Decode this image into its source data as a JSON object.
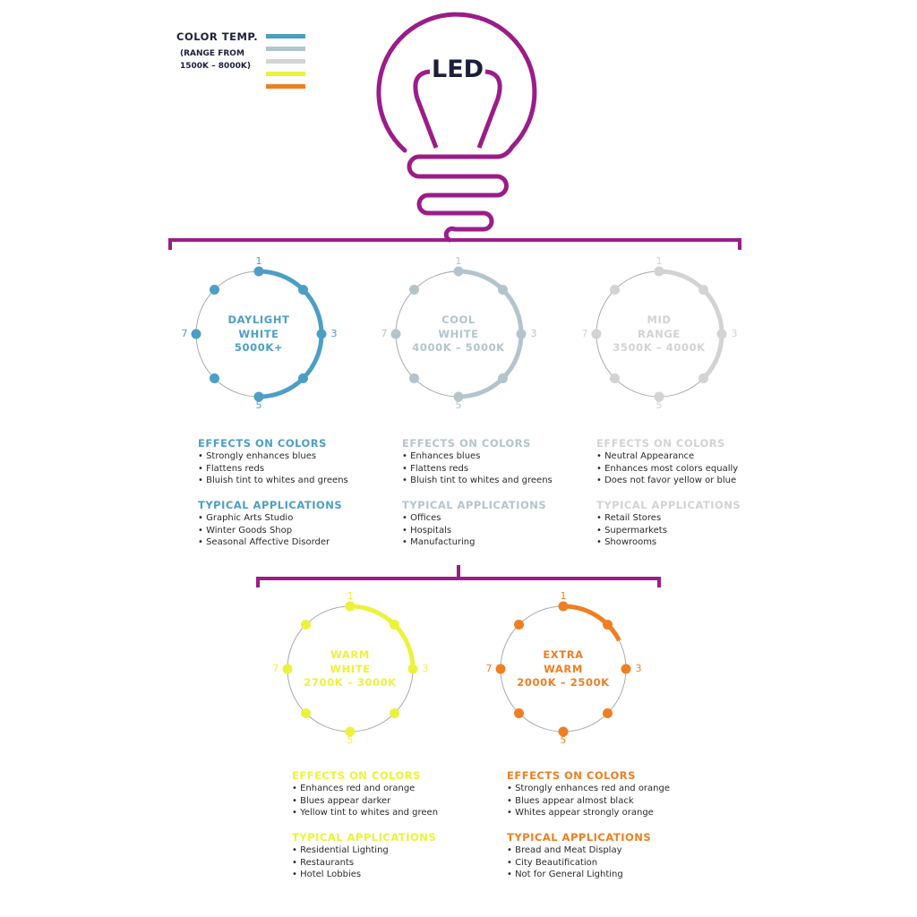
{
  "legend": {
    "title": "COLOR TEMP.",
    "subtitle_line1": "(RANGE FROM",
    "subtitle_line2": "1500K – 8000K)",
    "swatches": [
      "#4d9ec6",
      "#b4c4cd",
      "#d3d3d3",
      "#ecf23c",
      "#ef7f22"
    ]
  },
  "bulb": {
    "label": "LED",
    "color": "#9b1d88"
  },
  "point_labels": {
    "p1": "1",
    "p3": "3",
    "p5": "5",
    "p7": "7"
  },
  "categories": [
    {
      "title_line1": "DAYLIGHT",
      "title_line2": "WHITE",
      "range": "5000K+",
      "color": "#4d9ec6",
      "arc_end_point": 5,
      "effects_heading": "EFFECTS ON COLORS",
      "effects": [
        "Strongly enhances blues",
        "Flattens reds",
        "Bluish tint to whites and greens"
      ],
      "applications_heading": "TYPICAL APPLICATIONS",
      "applications": [
        "Graphic Arts Studio",
        "Winter Goods Shop",
        "Seasonal Affective Disorder"
      ]
    },
    {
      "title_line1": "COOL",
      "title_line2": "WHITE",
      "range": "4000K – 5000K",
      "color": "#b4c4cd",
      "arc_end_point": 5,
      "effects_heading": "EFFECTS ON COLORS",
      "effects": [
        "Enhances blues",
        "Flattens reds",
        "Bluish tint to whites and greens"
      ],
      "applications_heading": "TYPICAL APPLICATIONS",
      "applications": [
        "Offices",
        "Hospitals",
        "Manufacturing"
      ]
    },
    {
      "title_line1": "MID",
      "title_line2": "RANGE",
      "range": "3500K – 4000K",
      "color": "#d3d3d3",
      "arc_end_point": 4,
      "effects_heading": "EFFECTS ON COLORS",
      "effects": [
        "Neutral Appearance",
        "Enhances most colors equally",
        "Does not favor yellow or blue"
      ],
      "applications_heading": "TYPICAL APPLICATIONS",
      "applications": [
        "Retail Stores",
        "Supermarkets",
        "Showrooms"
      ]
    },
    {
      "title_line1": "WARM",
      "title_line2": "WHITE",
      "range": "2700K – 3000K",
      "color": "#ecf23c",
      "arc_end_point": 3,
      "effects_heading": "EFFECTS ON COLORS",
      "effects": [
        "Enhances red and orange",
        "Blues appear darker",
        "Yellow tint to whites and green"
      ],
      "applications_heading": "TYPICAL APPLICATIONS",
      "applications": [
        "Residential Lighting",
        "Restaurants",
        "Hotel Lobbies"
      ]
    },
    {
      "title_line1": "EXTRA",
      "title_line2": "WARM",
      "range": "2000K – 2500K",
      "color": "#ef7f22",
      "arc_end_point": 2.4,
      "effects_heading": "EFFECTS ON COLORS",
      "effects": [
        "Strongly enhances red and orange",
        "Blues appear almost black",
        "Whites appear strongly orange"
      ],
      "applications_heading": "TYPICAL APPLICATIONS",
      "applications": [
        "Bread and Meat Display",
        "City Beautification",
        "Not for General Lighting"
      ]
    }
  ]
}
